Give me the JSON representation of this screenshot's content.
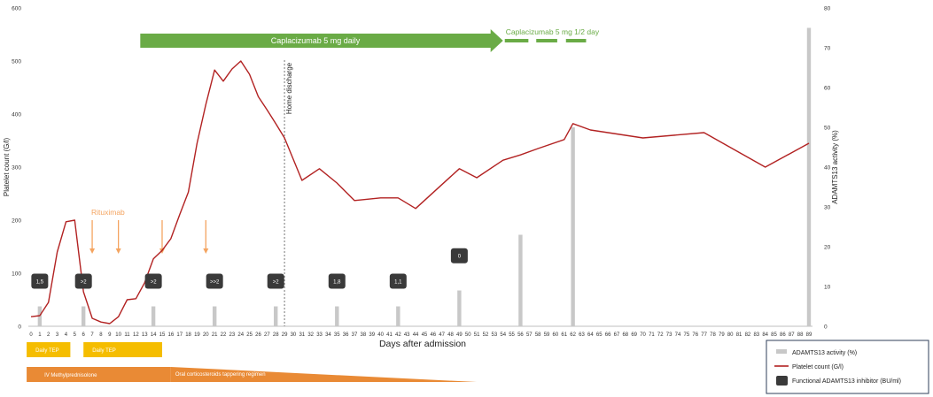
{
  "chart_data": {
    "type": "line",
    "title": "",
    "xlabel": "Days after admission",
    "ylabel": "Platelet count (G/l)",
    "y2label": "ADAMTS13 activity (%)",
    "xlim": [
      0,
      89
    ],
    "ylim": [
      0,
      600
    ],
    "y2lim": [
      0,
      80
    ],
    "x_ticks": [
      "0",
      "1",
      "2",
      "3",
      "4",
      "5",
      "6",
      "7",
      "8",
      "9",
      "10",
      "11",
      "12",
      "13",
      "14",
      "15",
      "16",
      "17",
      "18",
      "19",
      "20",
      "21",
      "22",
      "23",
      "24",
      "25",
      "26",
      "27",
      "28",
      "29",
      "30",
      "31",
      "32",
      "33",
      "34",
      "35",
      "36",
      "37",
      "38",
      "39",
      "40",
      "41",
      "42",
      "43",
      "44",
      "45",
      "46",
      "47",
      "48",
      "49",
      "50",
      "51",
      "52",
      "53",
      "54",
      "55",
      "56",
      "57",
      "58",
      "59",
      "60",
      "61",
      "62",
      "63",
      "64",
      "65",
      "66",
      "67",
      "68",
      "69",
      "70",
      "71",
      "72",
      "73",
      "74",
      "75",
      "76",
      "77",
      "78",
      "79",
      "80",
      "81",
      "82",
      "83",
      "84",
      "85",
      "86",
      "87",
      "88",
      "89"
    ],
    "y_ticks": [
      "0",
      "100",
      "200",
      "300",
      "400",
      "500",
      "600"
    ],
    "y2_ticks": [
      "0",
      "10",
      "20",
      "30",
      "40",
      "50",
      "60",
      "70",
      "80"
    ],
    "series": [
      {
        "name": "Platelet count (G/l)",
        "type": "line",
        "axis": "left",
        "color": "#b22222",
        "x": [
          0,
          1,
          2,
          3,
          4,
          5,
          6,
          7,
          8,
          9,
          10,
          11,
          12,
          13,
          14,
          15,
          16,
          17,
          18,
          19,
          20,
          21,
          22,
          23,
          24,
          25,
          26,
          27,
          28,
          29,
          31,
          33,
          35,
          37,
          40,
          42,
          44,
          49,
          51,
          54,
          56,
          58,
          61,
          62,
          64,
          70,
          77,
          84,
          89
        ],
        "values": [
          18,
          20,
          45,
          140,
          197,
          200,
          65,
          15,
          8,
          5,
          18,
          50,
          52,
          82,
          127,
          143,
          165,
          210,
          253,
          345,
          418,
          483,
          462,
          485,
          500,
          475,
          433,
          408,
          382,
          355,
          275,
          297,
          270,
          237,
          242,
          242,
          222,
          297,
          280,
          313,
          323,
          335,
          352,
          382,
          370,
          355,
          365,
          300,
          345
        ]
      },
      {
        "name": "ADAMTS13 activity (%)",
        "type": "bar",
        "axis": "right",
        "color": "#c8c8c8",
        "x": [
          1,
          6,
          14,
          21,
          28,
          35,
          42,
          49,
          56,
          62,
          89
        ],
        "values": [
          5,
          5,
          5,
          5,
          5,
          5,
          5,
          9,
          23,
          50,
          75
        ]
      }
    ],
    "inhibitor_markers": {
      "name": "Functional ADAMTS13 inhibitor (BU/ml)",
      "x": [
        1,
        6,
        14,
        21,
        28,
        35,
        42,
        49
      ],
      "labels": [
        "1,5",
        ">2",
        ">2",
        ">>2",
        ">2",
        "1,8",
        "1,1",
        "0"
      ],
      "y_left": [
        85,
        85,
        85,
        85,
        85,
        85,
        85,
        133
      ]
    },
    "rituximab": {
      "label": "Rituximab",
      "color": "#f4a460",
      "days": [
        7,
        10,
        15,
        20
      ]
    },
    "home_discharge": {
      "label": "Home discharge",
      "day": 29
    },
    "caplacizumab": [
      {
        "label": "Caplacizumab 5 mg daily",
        "from": 12.5,
        "to": 54,
        "color": "#6aab46"
      },
      {
        "label": "Caplacizumab 5 mg 1/2 day",
        "from": 54,
        "to": 64,
        "color": "#6aab46"
      }
    ],
    "treatment_bars": [
      {
        "label": "Daily TEP",
        "from": -0.5,
        "to": 4.5,
        "color": "#f5bd00",
        "row": 1
      },
      {
        "label": "Daily TEP",
        "from": 6,
        "to": 15,
        "color": "#f5bd00",
        "row": 1
      },
      {
        "label": "IV Methylprednisolone",
        "from": -0.5,
        "to": 16,
        "color": "#e98a35",
        "row": 2,
        "shape": "rect"
      },
      {
        "label": "Oral corticosteroids tappering regimen",
        "from": 16,
        "to": 51,
        "color": "#e98a35",
        "row": 2,
        "shape": "taper"
      }
    ],
    "legend": {
      "placement": "bottom-right",
      "items": [
        {
          "label": "ADAMTS13 activity (%)",
          "marker": "bar",
          "color": "#c8c8c8"
        },
        {
          "label": "Platelet count (G/l)",
          "marker": "line",
          "color": "#b22222"
        },
        {
          "label": "Functional ADAMTS13 inhibitor (BU/ml)",
          "marker": "box",
          "color": "#3a3a3a"
        }
      ]
    },
    "grid": false
  }
}
